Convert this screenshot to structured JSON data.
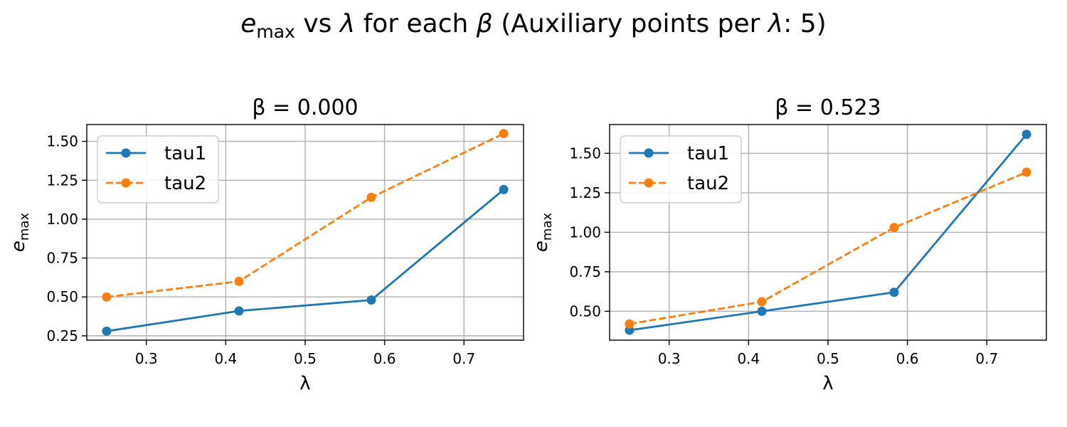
{
  "figure": {
    "title_parts": {
      "e": "e",
      "sub": "max",
      "mid": " vs ",
      "lambda": "λ",
      "for_each": " for each ",
      "beta": "β",
      "paren_open": " (Auxiliary points per ",
      "lambda2": "λ",
      "paren_close": ": 5)"
    }
  },
  "colors": {
    "tau1": "#1f77b4",
    "tau2": "#ff7f0e"
  },
  "chart_data": [
    {
      "type": "line",
      "title": "β = 0.000",
      "xlabel": "λ",
      "ylabel_main": "e",
      "ylabel_sub": "max",
      "x": [
        0.25,
        0.4167,
        0.5833,
        0.75
      ],
      "xlim": [
        0.225,
        0.775
      ],
      "ylim": [
        0.222,
        1.608
      ],
      "xticks": [
        0.3,
        0.4,
        0.5,
        0.6,
        0.7
      ],
      "xtick_labels": [
        "0.3",
        "0.4",
        "0.5",
        "0.6",
        "0.7"
      ],
      "yticks": [
        0.25,
        0.5,
        0.75,
        1.0,
        1.25,
        1.5
      ],
      "ytick_labels": [
        "0.25",
        "0.50",
        "0.75",
        "1.00",
        "1.25",
        "1.50"
      ],
      "grid": true,
      "legend": "upper left",
      "series": [
        {
          "name": "tau1",
          "values": [
            0.28,
            0.41,
            0.48,
            1.19
          ],
          "style": "solid"
        },
        {
          "name": "tau2",
          "values": [
            0.5,
            0.6,
            1.14,
            1.55
          ],
          "style": "dashed"
        }
      ]
    },
    {
      "type": "line",
      "title": "β = 0.523",
      "xlabel": "λ",
      "ylabel_main": "e",
      "ylabel_sub": "max",
      "x": [
        0.25,
        0.4167,
        0.5833,
        0.75
      ],
      "xlim": [
        0.225,
        0.775
      ],
      "ylim": [
        0.317,
        1.682
      ],
      "xticks": [
        0.3,
        0.4,
        0.5,
        0.6,
        0.7
      ],
      "xtick_labels": [
        "0.3",
        "0.4",
        "0.5",
        "0.6",
        "0.7"
      ],
      "yticks": [
        0.5,
        0.75,
        1.0,
        1.25,
        1.5
      ],
      "ytick_labels": [
        "0.50",
        "0.75",
        "1.00",
        "1.25",
        "1.50"
      ],
      "grid": true,
      "legend": "upper left",
      "series": [
        {
          "name": "tau1",
          "values": [
            0.38,
            0.5,
            0.62,
            1.62
          ],
          "style": "solid"
        },
        {
          "name": "tau2",
          "values": [
            0.42,
            0.56,
            1.03,
            1.38
          ],
          "style": "dashed"
        }
      ]
    }
  ]
}
